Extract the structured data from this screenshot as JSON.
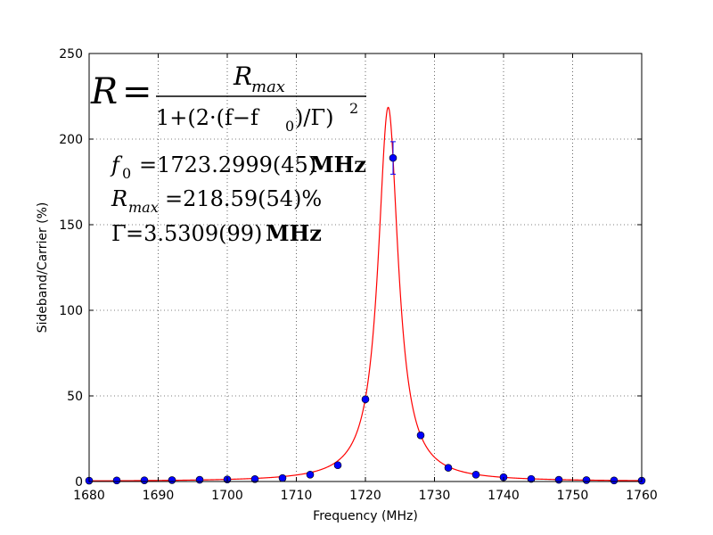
{
  "chart_data": {
    "type": "scatter",
    "xlabel": "Frequency (MHz)",
    "ylabel": "Sideband/Carrier (%)",
    "xlim": [
      1680,
      1760
    ],
    "ylim": [
      0,
      250
    ],
    "xticks": [
      "1680",
      "1690",
      "1700",
      "1710",
      "1720",
      "1730",
      "1740",
      "1750",
      "1760"
    ],
    "yticks": [
      "0",
      "50",
      "100",
      "150",
      "200",
      "250"
    ],
    "grid": true,
    "colors": {
      "fit": "#ff0000",
      "points": "#0000ff",
      "error_bar": "#0000ff"
    },
    "fit": {
      "model": "lorentzian",
      "f0": 1723.2999,
      "Rmax": 218.59,
      "Gamma": 3.5309
    },
    "points": {
      "x": [
        1680,
        1684,
        1688,
        1692,
        1696,
        1700,
        1704,
        1708,
        1712,
        1716,
        1720,
        1724,
        1728,
        1732,
        1736,
        1740,
        1744,
        1748,
        1752,
        1756,
        1760
      ],
      "y": [
        0.5,
        0.6,
        0.7,
        0.8,
        1.0,
        1.2,
        1.4,
        2.0,
        4.0,
        9.5,
        48.0,
        189.0,
        27.0,
        8.0,
        4.0,
        2.5,
        1.5,
        1.0,
        0.8,
        0.6,
        0.5
      ],
      "err": [
        0,
        0,
        0,
        0,
        0,
        0,
        0,
        0,
        0,
        0,
        0,
        9.5,
        0,
        0,
        0,
        0,
        0,
        0,
        0,
        0,
        0
      ]
    },
    "annotations": {
      "formula": {
        "lhs": "R",
        "eq": "=",
        "num_R": "R",
        "num_sub": "max",
        "den_1": "1+(2·(f−f",
        "den_sub0": "0",
        "den_2": ")/Γ)",
        "den_sup": "2"
      },
      "f0_line": {
        "sym": "f",
        "sub": "0",
        "val": "=1723.2999(45)",
        "unit": "MHz"
      },
      "rmax_line": {
        "sym": "R",
        "sub": "max",
        "val": "=218.59(54)%"
      },
      "gamma_line": {
        "sym": "Γ",
        "val": "=3.5309(99)",
        "unit": "MHz"
      }
    }
  }
}
